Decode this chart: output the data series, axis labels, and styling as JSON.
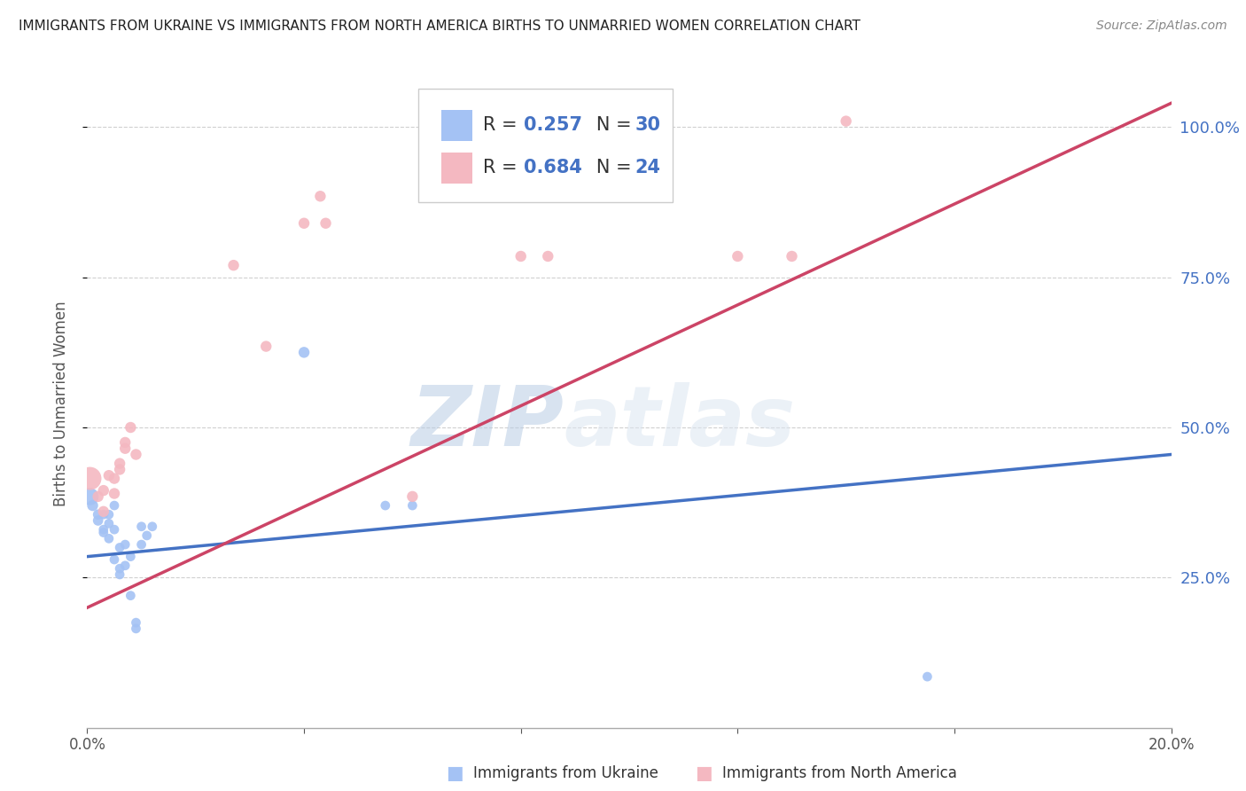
{
  "title": "IMMIGRANTS FROM UKRAINE VS IMMIGRANTS FROM NORTH AMERICA BIRTHS TO UNMARRIED WOMEN CORRELATION CHART",
  "source": "Source: ZipAtlas.com",
  "xlabel_blue": "Immigrants from Ukraine",
  "xlabel_pink": "Immigrants from North America",
  "ylabel": "Births to Unmarried Women",
  "r_blue": 0.257,
  "n_blue": 30,
  "r_pink": 0.684,
  "n_pink": 24,
  "xlim": [
    0.0,
    0.2
  ],
  "ylim": [
    0.0,
    1.08
  ],
  "yticks": [
    0.25,
    0.5,
    0.75,
    1.0
  ],
  "ytick_labels": [
    "25.0%",
    "50.0%",
    "75.0%",
    "100.0%"
  ],
  "xticks": [
    0.0,
    0.04,
    0.08,
    0.12,
    0.16,
    0.2
  ],
  "xtick_labels": [
    "0.0%",
    "",
    "",
    "",
    "",
    "20.0%"
  ],
  "blue_color": "#a4c2f4",
  "pink_color": "#f4b8c1",
  "line_blue": "#4472c4",
  "line_pink": "#cc4466",
  "background": "#ffffff",
  "grid_color": "#d0d0d0",
  "watermark_zip": "ZIP",
  "watermark_atlas": "atlas",
  "blue_line_y0": 0.285,
  "blue_line_y1": 0.455,
  "pink_line_y0": 0.2,
  "pink_line_y1": 1.04,
  "blue_points": [
    [
      0.0005,
      0.385
    ],
    [
      0.001,
      0.37
    ],
    [
      0.002,
      0.355
    ],
    [
      0.002,
      0.345
    ],
    [
      0.003,
      0.355
    ],
    [
      0.003,
      0.325
    ],
    [
      0.003,
      0.33
    ],
    [
      0.004,
      0.355
    ],
    [
      0.004,
      0.34
    ],
    [
      0.004,
      0.315
    ],
    [
      0.005,
      0.37
    ],
    [
      0.005,
      0.33
    ],
    [
      0.005,
      0.28
    ],
    [
      0.006,
      0.3
    ],
    [
      0.006,
      0.265
    ],
    [
      0.006,
      0.255
    ],
    [
      0.007,
      0.305
    ],
    [
      0.007,
      0.27
    ],
    [
      0.008,
      0.285
    ],
    [
      0.009,
      0.175
    ],
    [
      0.009,
      0.165
    ],
    [
      0.01,
      0.305
    ],
    [
      0.01,
      0.335
    ],
    [
      0.011,
      0.32
    ],
    [
      0.012,
      0.335
    ],
    [
      0.04,
      0.625
    ],
    [
      0.055,
      0.37
    ],
    [
      0.06,
      0.37
    ],
    [
      0.155,
      0.085
    ],
    [
      0.008,
      0.22
    ]
  ],
  "blue_sizes": [
    200,
    80,
    70,
    70,
    60,
    60,
    60,
    60,
    60,
    60,
    60,
    60,
    60,
    60,
    60,
    60,
    60,
    60,
    60,
    60,
    60,
    60,
    60,
    60,
    60,
    80,
    60,
    60,
    60,
    60
  ],
  "pink_points": [
    [
      0.0005,
      0.415
    ],
    [
      0.002,
      0.385
    ],
    [
      0.003,
      0.395
    ],
    [
      0.003,
      0.36
    ],
    [
      0.004,
      0.42
    ],
    [
      0.005,
      0.415
    ],
    [
      0.005,
      0.39
    ],
    [
      0.006,
      0.44
    ],
    [
      0.006,
      0.43
    ],
    [
      0.007,
      0.475
    ],
    [
      0.007,
      0.465
    ],
    [
      0.008,
      0.5
    ],
    [
      0.009,
      0.455
    ],
    [
      0.027,
      0.77
    ],
    [
      0.033,
      0.635
    ],
    [
      0.04,
      0.84
    ],
    [
      0.043,
      0.885
    ],
    [
      0.044,
      0.84
    ],
    [
      0.06,
      0.385
    ],
    [
      0.08,
      0.785
    ],
    [
      0.085,
      0.785
    ],
    [
      0.12,
      0.785
    ],
    [
      0.13,
      0.785
    ],
    [
      0.14,
      1.01
    ]
  ],
  "pink_sizes": [
    350,
    80,
    80,
    80,
    80,
    80,
    80,
    80,
    80,
    80,
    80,
    80,
    80,
    80,
    80,
    80,
    80,
    80,
    80,
    80,
    80,
    80,
    80,
    80
  ]
}
